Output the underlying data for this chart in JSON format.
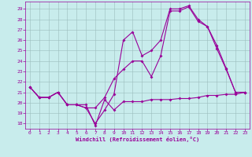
{
  "xlabel": "Windchill (Refroidissement éolien,°C)",
  "bg_color": "#c8ecec",
  "line_color": "#990099",
  "xlim": [
    -0.5,
    23.5
  ],
  "ylim": [
    17.5,
    29.7
  ],
  "xticks": [
    0,
    1,
    2,
    3,
    4,
    5,
    6,
    7,
    8,
    9,
    10,
    11,
    12,
    13,
    14,
    15,
    16,
    17,
    18,
    19,
    20,
    21,
    22,
    23
  ],
  "yticks": [
    18,
    19,
    20,
    21,
    22,
    23,
    24,
    25,
    26,
    27,
    28,
    29
  ],
  "series1_x": [
    0,
    1,
    2,
    3,
    4,
    5,
    6,
    7,
    8,
    9,
    10,
    11,
    12,
    13,
    14,
    15,
    16,
    17,
    18,
    19,
    20,
    21,
    22,
    23
  ],
  "series1_y": [
    21.5,
    20.5,
    20.5,
    21.0,
    19.8,
    19.8,
    19.8,
    17.8,
    20.3,
    19.3,
    20.1,
    20.1,
    20.1,
    20.3,
    20.3,
    20.3,
    20.4,
    20.4,
    20.5,
    20.7,
    20.7,
    20.8,
    20.8,
    21.0
  ],
  "series2_x": [
    0,
    1,
    2,
    3,
    4,
    5,
    6,
    7,
    8,
    9,
    10,
    11,
    12,
    13,
    14,
    15,
    16,
    17,
    18,
    19,
    20,
    21,
    22,
    23
  ],
  "series2_y": [
    21.5,
    20.5,
    20.5,
    21.0,
    19.8,
    19.8,
    19.5,
    19.5,
    20.5,
    22.3,
    23.2,
    24.0,
    24.0,
    22.5,
    24.5,
    28.8,
    28.8,
    29.2,
    27.8,
    27.3,
    25.2,
    23.2,
    21.0,
    21.0
  ],
  "series3_x": [
    0,
    1,
    2,
    3,
    4,
    5,
    6,
    7,
    8,
    9,
    10,
    11,
    12,
    13,
    14,
    15,
    16,
    17,
    18,
    19,
    20,
    21,
    22,
    23
  ],
  "series3_y": [
    21.5,
    20.5,
    20.5,
    21.0,
    19.8,
    19.8,
    19.5,
    18.0,
    19.3,
    20.8,
    26.0,
    26.8,
    24.5,
    25.0,
    26.0,
    29.0,
    29.0,
    29.3,
    28.0,
    27.3,
    25.5,
    23.3,
    21.0,
    21.0
  ],
  "grid_color": "#9bbcbc",
  "markersize": 2.0,
  "linewidth": 0.8
}
